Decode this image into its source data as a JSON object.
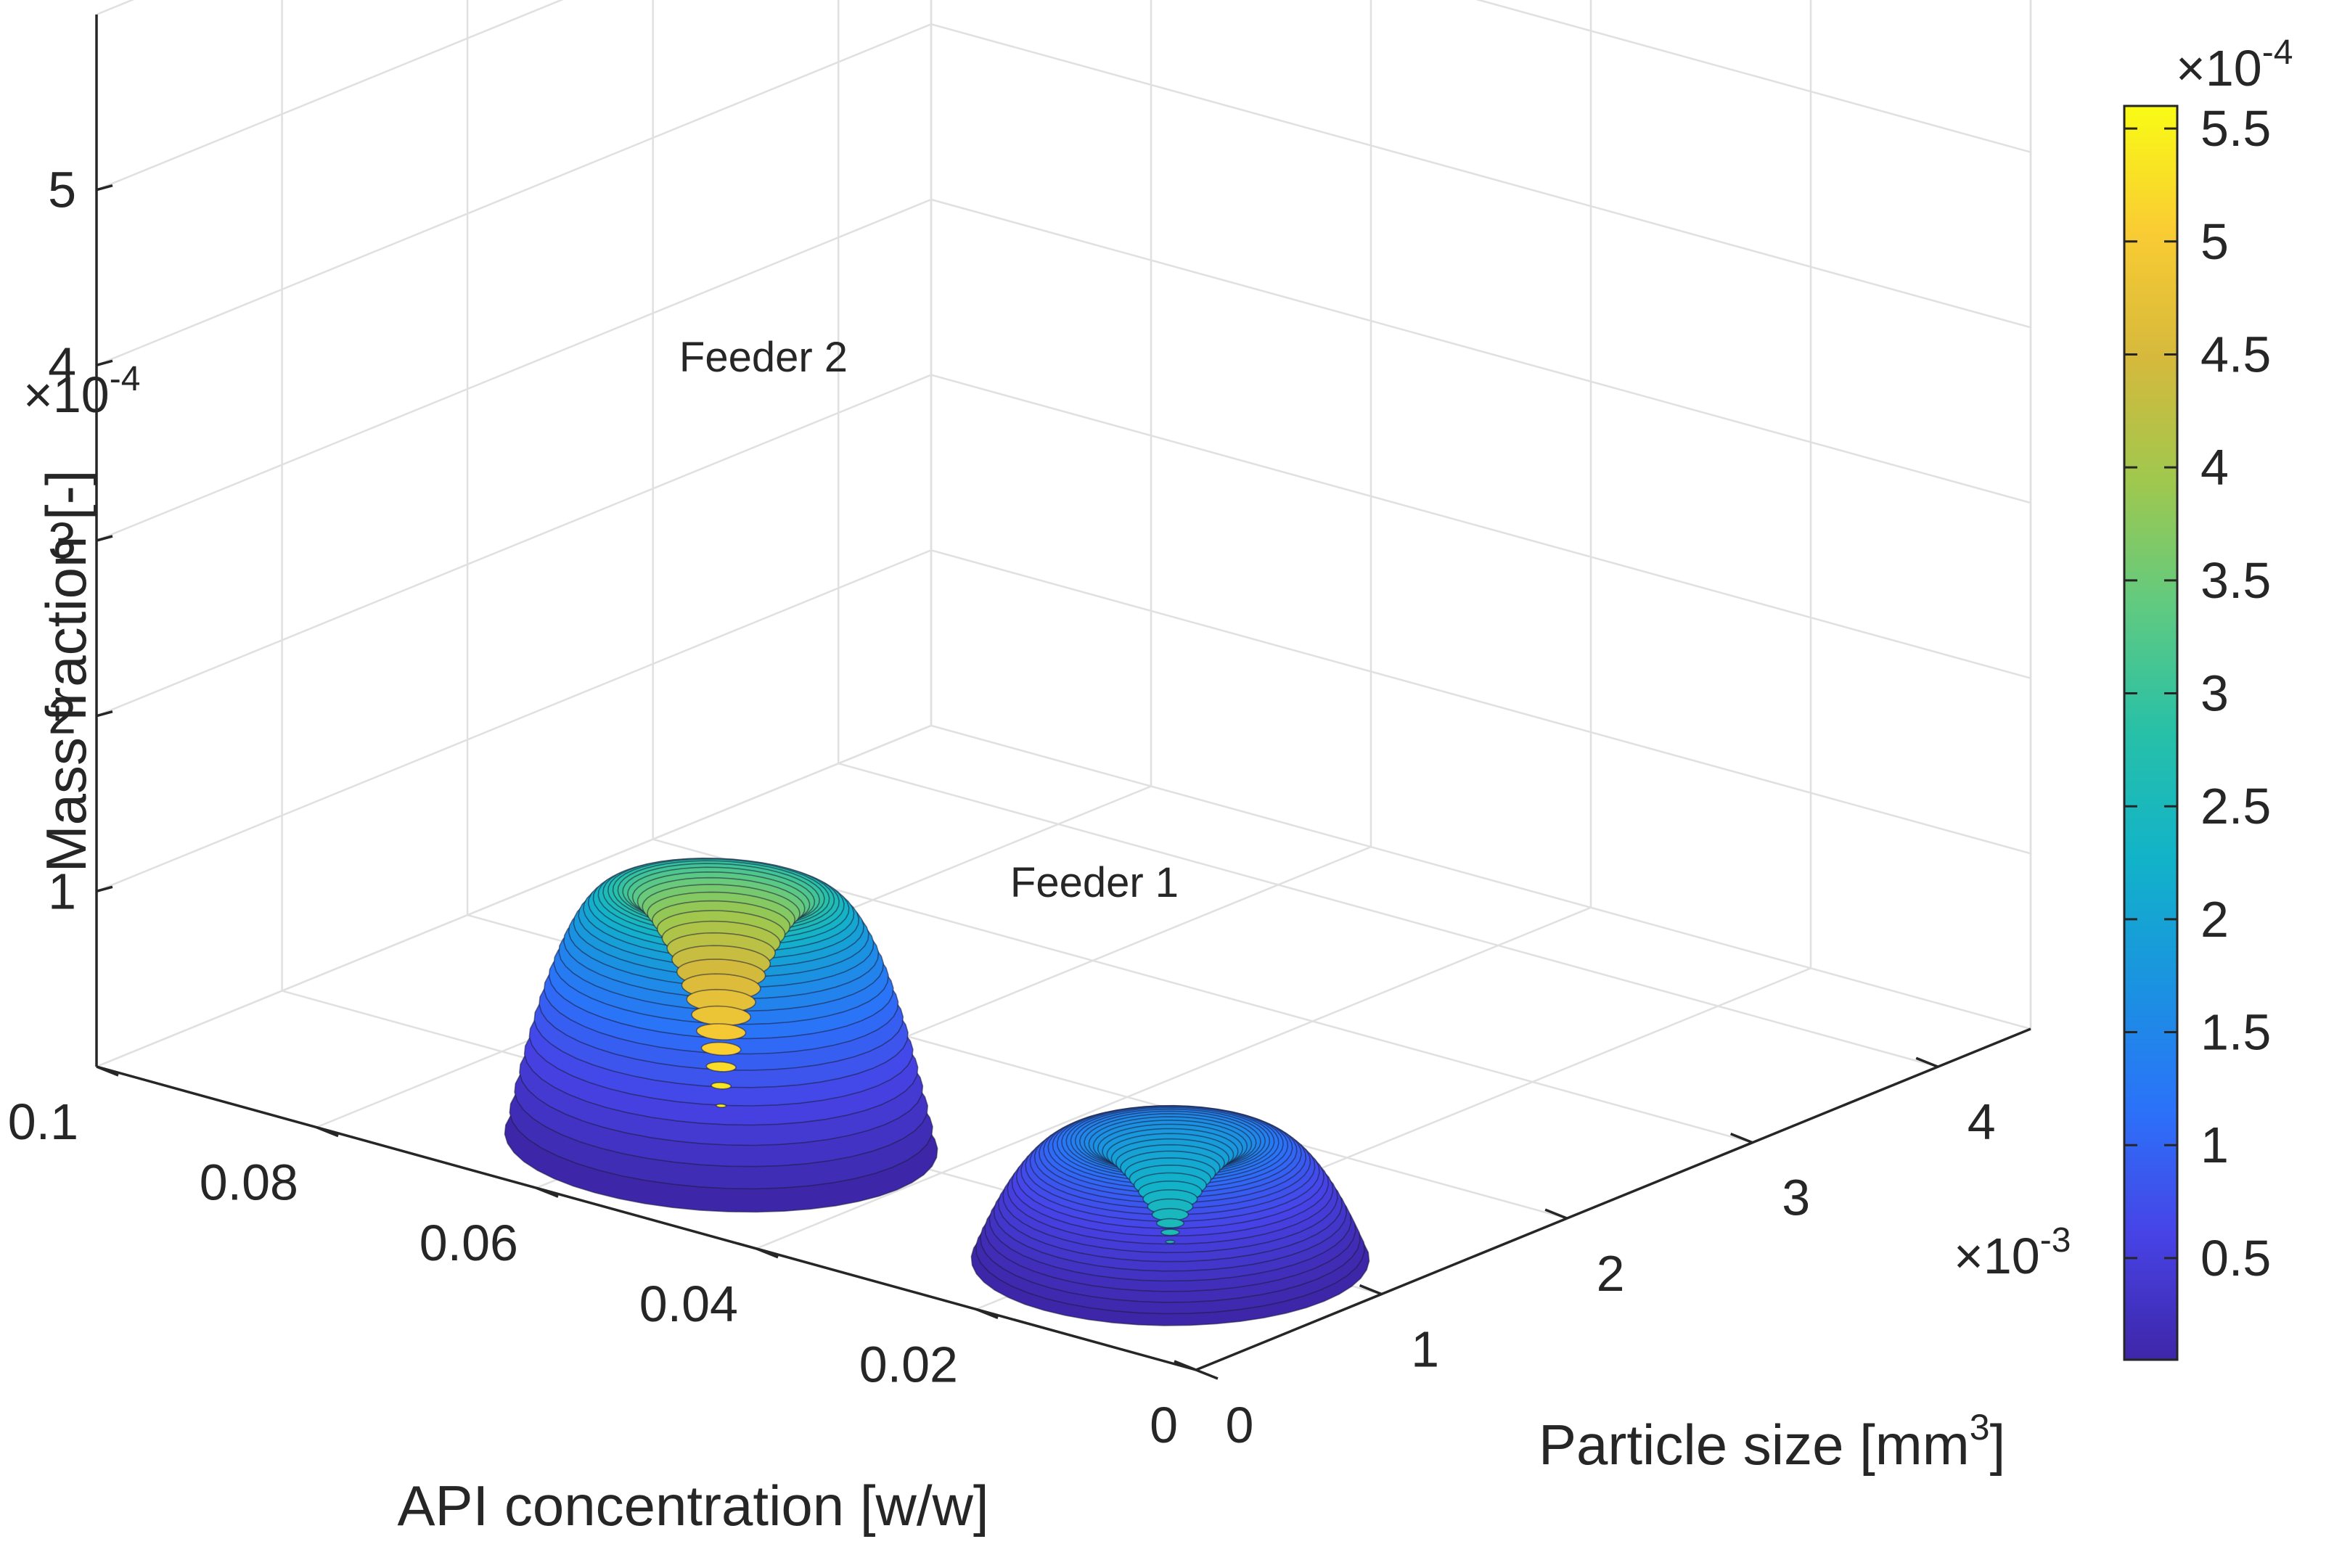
{
  "chart_data": {
    "type": "surface3d",
    "title": "",
    "xlabel": "API concentration [w/w]",
    "ylabel": "Particle size [mm",
    "ylabel_sup": "3",
    "ylabel_end": "]",
    "zlabel": "Mass fraction [-]",
    "x_ticks": [
      {
        "v": 0,
        "label": "0"
      },
      {
        "v": 0.02,
        "label": "0.02"
      },
      {
        "v": 0.04,
        "label": "0.04"
      },
      {
        "v": 0.06,
        "label": "0.06"
      },
      {
        "v": 0.08,
        "label": "0.08"
      },
      {
        "v": 0.1,
        "label": "0.1"
      }
    ],
    "y_ticks": [
      {
        "v": 0,
        "label": "0"
      },
      {
        "v": 1,
        "label": "1"
      },
      {
        "v": 2,
        "label": "2"
      },
      {
        "v": 3,
        "label": "3"
      },
      {
        "v": 4,
        "label": "4"
      }
    ],
    "y_scale": "×10",
    "y_scale_exp": "-3",
    "z_ticks": [
      {
        "v": 1,
        "label": "1"
      },
      {
        "v": 2,
        "label": "2"
      },
      {
        "v": 3,
        "label": "3"
      },
      {
        "v": 4,
        "label": "4"
      },
      {
        "v": 5,
        "label": "5"
      }
    ],
    "z_scale": "×10",
    "z_scale_exp": "-4",
    "xlim": [
      0,
      0.1
    ],
    "ylim": [
      0,
      4.5
    ],
    "zlim": [
      0,
      6
    ],
    "colormap": "parula",
    "colorbar": {
      "range": [
        0.05,
        5.6
      ],
      "ticks": [
        {
          "v": 0.5,
          "label": "0.5"
        },
        {
          "v": 1,
          "label": "1"
        },
        {
          "v": 1.5,
          "label": "1.5"
        },
        {
          "v": 2,
          "label": "2"
        },
        {
          "v": 2.5,
          "label": "2.5"
        },
        {
          "v": 3,
          "label": "3"
        },
        {
          "v": 3.5,
          "label": "3.5"
        },
        {
          "v": 4,
          "label": "4"
        },
        {
          "v": 4.5,
          "label": "4.5"
        },
        {
          "v": 5,
          "label": "5"
        },
        {
          "v": 5.5,
          "label": "5.5"
        }
      ],
      "scale": "×10",
      "scale_exp": "-4"
    },
    "series": [
      {
        "name": "Feeder 1",
        "label": "Feeder  1",
        "peak_x": 0.015,
        "peak_y": 0.75,
        "peak_z": 2.65,
        "radius_x": 0.014,
        "radius_y": 0.68
      },
      {
        "name": "Feeder 2",
        "label": "Feeder  2",
        "peak_x": 0.055,
        "peak_y": 0.7,
        "peak_z": 5.55,
        "radius_x": 0.016,
        "radius_y": 0.68
      }
    ]
  }
}
